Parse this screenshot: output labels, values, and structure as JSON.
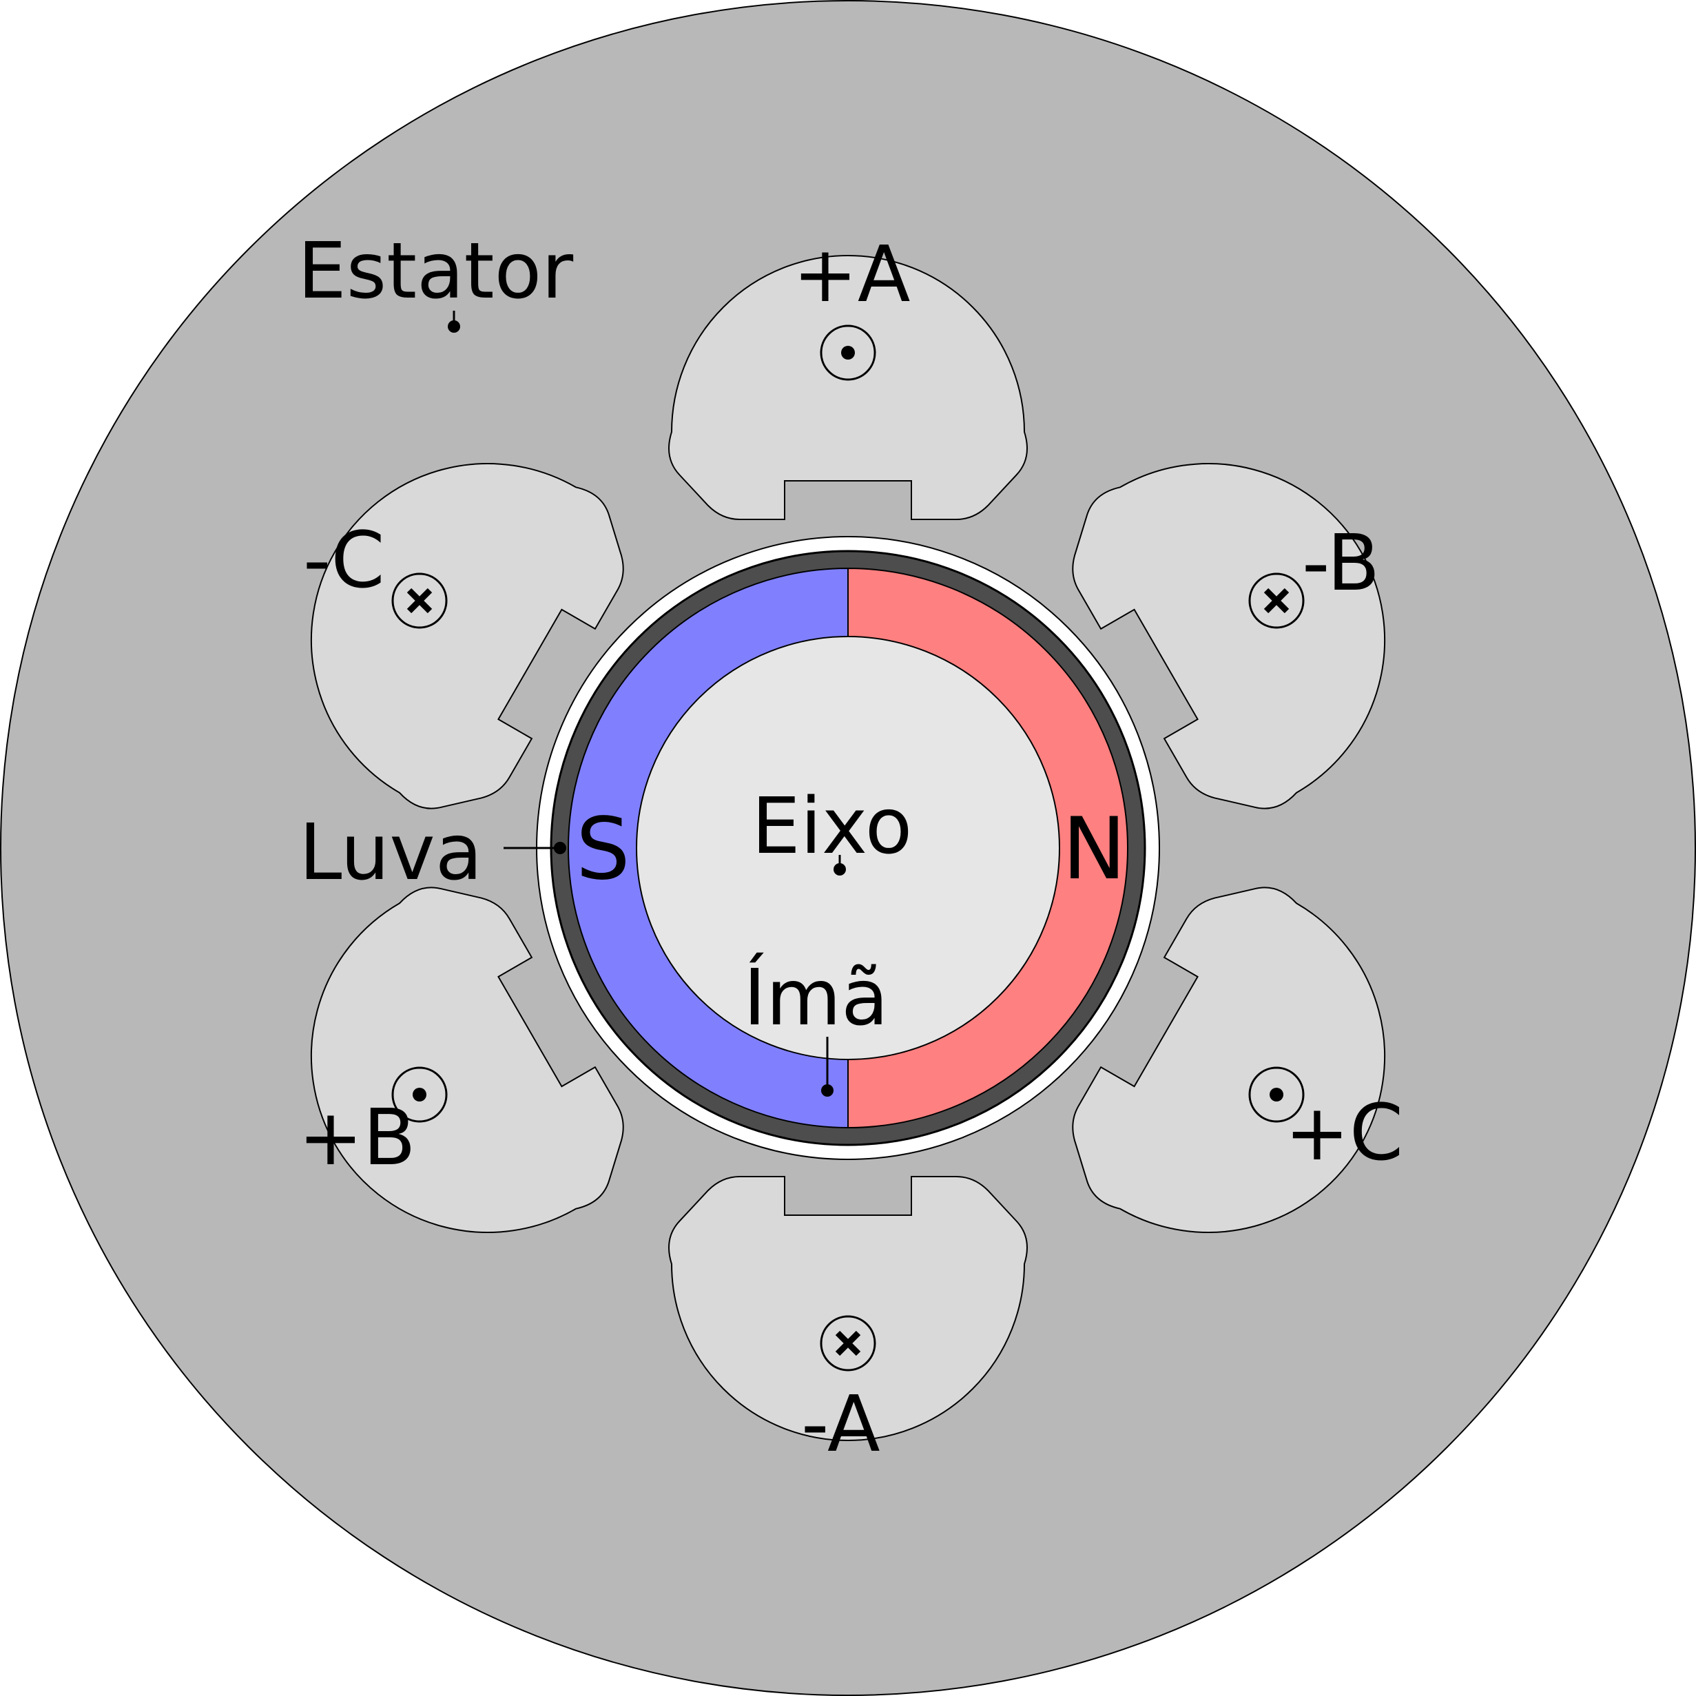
{
  "labels": {
    "stator": "Estator",
    "sleeve": "Luva",
    "shaft": "Eixo",
    "magnet": "Ímã",
    "south_pole": "S",
    "north_pole": "N"
  },
  "coils": [
    {
      "label": "+A",
      "direction": "dot"
    },
    {
      "label": "-B",
      "direction": "cross"
    },
    {
      "label": "+C",
      "direction": "dot"
    },
    {
      "label": "-A",
      "direction": "cross"
    },
    {
      "label": "+B",
      "direction": "dot"
    },
    {
      "label": "-C",
      "direction": "cross"
    }
  ],
  "colors": {
    "stator": "#b8b8b8",
    "slot": "#d9d9d9",
    "sleeve": "#4d4d4d",
    "magnet_north": "#ff8080",
    "magnet_south": "#8080ff",
    "shaft": "#e6e6e6",
    "air_gap": "#ffffff"
  }
}
